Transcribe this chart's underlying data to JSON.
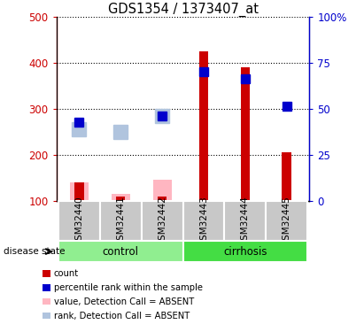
{
  "title": "GDS1354 / 1373407_at",
  "samples": [
    "GSM32440",
    "GSM32441",
    "GSM32442",
    "GSM32443",
    "GSM32444",
    "GSM32445"
  ],
  "red_bars": [
    140,
    110,
    110,
    425,
    390,
    205
  ],
  "pink_bars": [
    140,
    115,
    145,
    null,
    null,
    null
  ],
  "blue_squares": [
    270,
    null,
    285,
    380,
    365,
    305
  ],
  "lightblue_squares": [
    255,
    250,
    285,
    null,
    null,
    null
  ],
  "ylim_left": [
    100,
    500
  ],
  "ylim_right": [
    0,
    100
  ],
  "yticks_left": [
    100,
    200,
    300,
    400,
    500
  ],
  "yticks_right": [
    0,
    25,
    50,
    75,
    100
  ],
  "yticklabels_right": [
    "0",
    "25",
    "50",
    "75",
    "100%"
  ],
  "left_axis_color": "#CC0000",
  "right_axis_color": "#0000CC",
  "control_color": "#90EE90",
  "cirrhosis_color": "#44DD44",
  "sample_box_color": "#C8C8C8",
  "legend_colors": [
    "#CC0000",
    "#0000CC",
    "#FFB6C1",
    "#B0C4DE"
  ],
  "legend_labels": [
    "count",
    "percentile rank within the sample",
    "value, Detection Call = ABSENT",
    "rank, Detection Call = ABSENT"
  ],
  "disease_state_label": "disease state"
}
